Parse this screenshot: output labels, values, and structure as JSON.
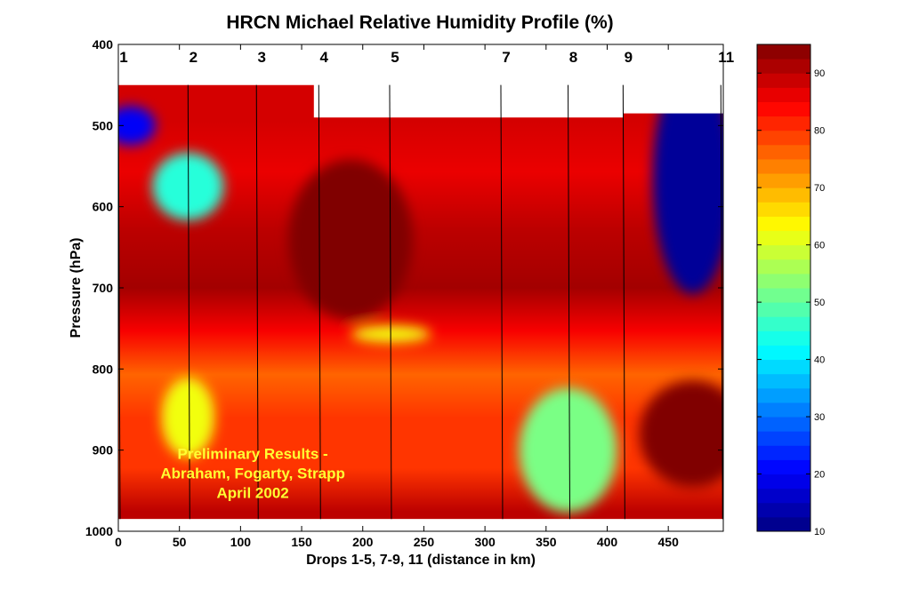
{
  "chart_data": {
    "type": "heatmap",
    "title": "HRCN Michael Relative Humidity Profile (%)",
    "xlabel": "Drops 1-5, 7-9, 11 (distance in km)",
    "ylabel": "Pressure (hPa)",
    "xlim": [
      0,
      495
    ],
    "ylim": [
      1000,
      400
    ],
    "y_reversed": true,
    "xticks": [
      0,
      50,
      100,
      150,
      200,
      250,
      300,
      350,
      400,
      450
    ],
    "yticks": [
      400,
      500,
      600,
      700,
      800,
      900,
      1000
    ],
    "drops": [
      {
        "label": "1",
        "x": 0
      },
      {
        "label": "2",
        "x": 57
      },
      {
        "label": "3",
        "x": 113
      },
      {
        "label": "4",
        "x": 164
      },
      {
        "label": "5",
        "x": 222
      },
      {
        "label": "7",
        "x": 313
      },
      {
        "label": "8",
        "x": 368
      },
      {
        "label": "9",
        "x": 413
      },
      {
        "label": "11",
        "x": 493
      }
    ],
    "colorbar": {
      "ticks": [
        10,
        20,
        30,
        40,
        50,
        60,
        70,
        80,
        90
      ],
      "min": 10,
      "max": 95,
      "colormap": "jet"
    },
    "features": [
      {
        "x": 10,
        "p": 500,
        "value": 20
      },
      {
        "x": 57,
        "p": 575,
        "value": 45
      },
      {
        "x": 57,
        "p": 860,
        "value": 62
      },
      {
        "x": 223,
        "p": 757,
        "value": 62
      },
      {
        "x": 368,
        "p": 900,
        "value": 52
      },
      {
        "x": 470,
        "p": 565,
        "value": 12
      },
      {
        "x": 190,
        "p": 640,
        "value": 95
      },
      {
        "x": 470,
        "p": 880,
        "value": 95
      }
    ],
    "annotation": [
      "Preliminary Results -",
      "Abraham, Fogarty, Strapp",
      "April 2002"
    ]
  }
}
